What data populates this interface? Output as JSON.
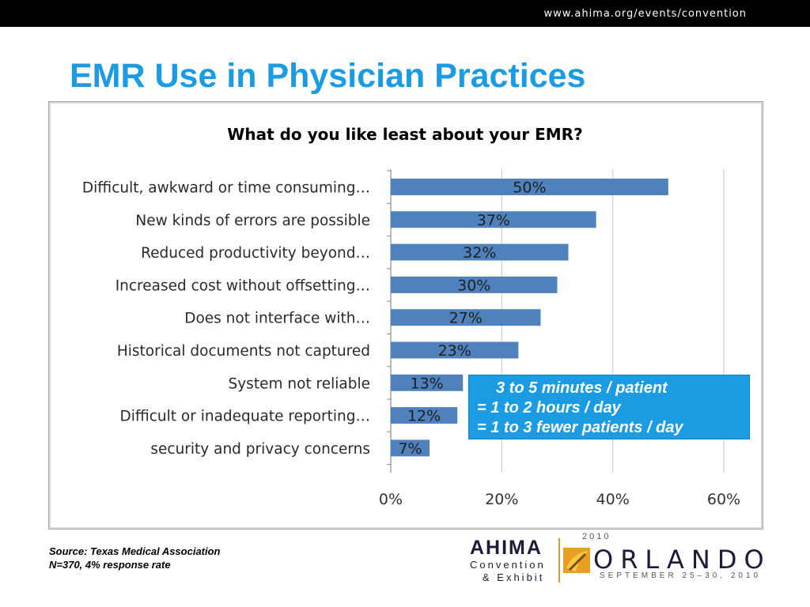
{
  "header": {
    "url": "www.ahima.org/events/convention"
  },
  "slide": {
    "title": "EMR Use in Physician Practices"
  },
  "chart_data": {
    "type": "bar",
    "orientation": "horizontal",
    "title": "What do you like least about your EMR?",
    "categories": [
      "Difficult, awkward or time consuming…",
      "New kinds of errors are possible",
      "Reduced productivity beyond…",
      "Increased cost without offsetting…",
      "Does not interface with…",
      "Historical documents not captured",
      "System not reliable",
      "Difficult or inadequate reporting…",
      "security and privacy concerns"
    ],
    "values": [
      50,
      37,
      32,
      30,
      27,
      23,
      13,
      12,
      7
    ],
    "data_labels": [
      "50%",
      "37%",
      "32%",
      "30%",
      "27%",
      "23%",
      "13%",
      "12%",
      "7%"
    ],
    "x_ticks": [
      0,
      20,
      40,
      60
    ],
    "x_tick_labels": [
      "0%",
      "20%",
      "40%",
      "60%"
    ],
    "xlim": [
      0,
      60
    ],
    "grid": true,
    "legend": "none",
    "bar_color": "#4f81bd"
  },
  "callout": {
    "line1": "3 to 5 minutes / patient",
    "line2": "= 1 to 2 hours / day",
    "line3": "= 1 to 3 fewer patients / day",
    "color": "#1a9be2"
  },
  "source": {
    "line1": "Source:  Texas Medical Association",
    "line2": "N=370, 4% response rate"
  },
  "logo": {
    "org": "AHIMA",
    "line1": "Convention",
    "line2": "& Exhibit",
    "year": "2010",
    "city": "ORLANDO",
    "dates": "SEPTEMBER 25–30, 2010"
  }
}
